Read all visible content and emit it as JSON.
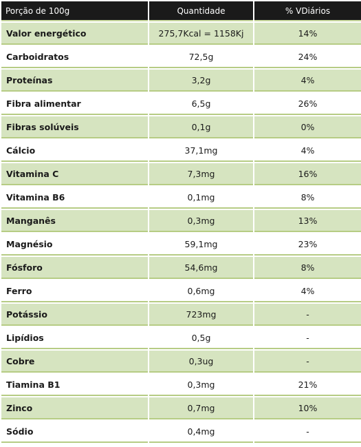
{
  "header": {
    "col1": "Porção de 100g",
    "col2": "Quantidade",
    "col3": "% VDiários"
  },
  "rows": [
    {
      "name": "Valor energético",
      "qty": "275,7Kcal = 1158Kj",
      "vd": "14%"
    },
    {
      "name": "Carboidratos",
      "qty": "72,5g",
      "vd": "24%"
    },
    {
      "name": "Proteínas",
      "qty": "3,2g",
      "vd": "4%"
    },
    {
      "name": "Fibra alimentar",
      "qty": "6,5g",
      "vd": "26%"
    },
    {
      "name": "Fibras solúveis",
      "qty": "0,1g",
      "vd": "0%"
    },
    {
      "name": "Cálcio",
      "qty": "37,1mg",
      "vd": "4%"
    },
    {
      "name": "Vitamina C",
      "qty": "7,3mg",
      "vd": "16%"
    },
    {
      "name": "Vitamina B6",
      "qty": "0,1mg",
      "vd": "8%"
    },
    {
      "name": "Manganês",
      "qty": "0,3mg",
      "vd": "13%"
    },
    {
      "name": "Magnésio",
      "qty": "59,1mg",
      "vd": "23%"
    },
    {
      "name": "Fósforo",
      "qty": "54,6mg",
      "vd": "8%"
    },
    {
      "name": "Ferro",
      "qty": "0,6mg",
      "vd": "4%"
    },
    {
      "name": "Potássio",
      "qty": "723mg",
      "vd": "-"
    },
    {
      "name": "Lipídios",
      "qty": "0,5g",
      "vd": "-"
    },
    {
      "name": "Cobre",
      "qty": "0,3ug",
      "vd": "-"
    },
    {
      "name": "Tiamina B1",
      "qty": "0,3mg",
      "vd": "21%"
    },
    {
      "name": "Zinco",
      "qty": "0,7mg",
      "vd": "10%"
    },
    {
      "name": "Sódio",
      "qty": "0,4mg",
      "vd": "-"
    }
  ],
  "colors": {
    "header_bg": "#1a1a1a",
    "shade_row": "#d6e4c0",
    "row_border": "#b6cc84"
  }
}
